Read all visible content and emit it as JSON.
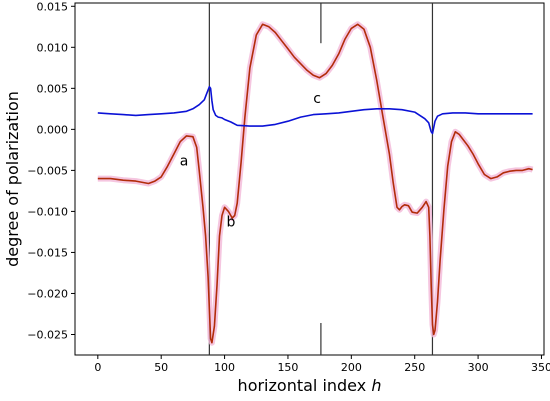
{
  "chart_data": {
    "type": "line",
    "xlabel": "horizontal index",
    "xlabel_italic": "h",
    "ylabel": "degree of polarization",
    "xlim": [
      -18,
      352
    ],
    "ylim": [
      -0.0275,
      0.0154
    ],
    "xticks": [
      0,
      50,
      100,
      150,
      200,
      250,
      300,
      350
    ],
    "yticks": [
      {
        "v": 0.015,
        "label": "0.015"
      },
      {
        "v": 0.01,
        "label": "0.010"
      },
      {
        "v": 0.005,
        "label": "0.005"
      },
      {
        "v": 0.0,
        "label": "0.000"
      },
      {
        "v": -0.005,
        "label": "−0.005"
      },
      {
        "v": -0.01,
        "label": "−0.010"
      },
      {
        "v": -0.015,
        "label": "−0.015"
      },
      {
        "v": -0.02,
        "label": "−0.020"
      },
      {
        "v": -0.025,
        "label": "−0.025"
      }
    ],
    "vlines": [
      {
        "x": 88,
        "full": true
      },
      {
        "x": 176,
        "full": false,
        "segments": [
          [
            0.0105,
            0.0154
          ],
          [
            -0.0275,
            -0.0236
          ]
        ]
      },
      {
        "x": 264,
        "full": true
      }
    ],
    "annotations": [
      {
        "text": "a",
        "x": 68,
        "y": -0.0038
      },
      {
        "text": "b",
        "x": 105,
        "y": -0.0112
      },
      {
        "text": "c",
        "x": 173,
        "y": 0.0038
      }
    ],
    "series": [
      {
        "color": "#b22c0a",
        "halo": "#f3b8d8",
        "x": [
          0,
          10,
          20,
          30,
          40,
          45,
          50,
          55,
          60,
          65,
          70,
          75,
          78,
          80,
          83,
          85,
          87,
          88,
          89,
          90,
          92,
          94,
          96,
          98,
          100,
          103,
          106,
          108,
          110,
          113,
          116,
          120,
          125,
          130,
          135,
          140,
          145,
          150,
          155,
          160,
          165,
          170,
          175,
          180,
          185,
          190,
          195,
          200,
          205,
          210,
          215,
          220,
          225,
          230,
          233,
          236,
          238,
          240,
          242,
          245,
          248,
          252,
          256,
          259,
          261,
          262,
          263,
          264,
          265,
          266,
          268,
          270,
          273,
          276,
          279,
          282,
          285,
          288,
          292,
          296,
          300,
          305,
          310,
          315,
          320,
          325,
          330,
          335,
          340,
          343
        ],
        "y": [
          -0.006,
          -0.006,
          -0.0062,
          -0.0063,
          -0.0066,
          -0.0063,
          -0.0058,
          -0.0045,
          -0.003,
          -0.0015,
          -0.0008,
          -0.0009,
          -0.0022,
          -0.005,
          -0.0095,
          -0.013,
          -0.018,
          -0.022,
          -0.0255,
          -0.026,
          -0.024,
          -0.019,
          -0.013,
          -0.0105,
          -0.0095,
          -0.01,
          -0.0108,
          -0.0105,
          -0.009,
          -0.004,
          0.0015,
          0.0075,
          0.0115,
          0.0128,
          0.0125,
          0.0118,
          0.0108,
          0.0098,
          0.0088,
          0.008,
          0.0072,
          0.0066,
          0.0063,
          0.0068,
          0.0078,
          0.0092,
          0.011,
          0.0123,
          0.0128,
          0.0122,
          0.01,
          0.006,
          0.0015,
          -0.003,
          -0.0065,
          -0.0095,
          -0.0098,
          -0.0094,
          -0.0092,
          -0.0093,
          -0.0101,
          -0.0102,
          -0.0095,
          -0.0088,
          -0.0095,
          -0.013,
          -0.019,
          -0.0238,
          -0.025,
          -0.0245,
          -0.021,
          -0.016,
          -0.0098,
          -0.0045,
          -0.0015,
          -0.0003,
          -0.0006,
          -0.0012,
          -0.002,
          -0.003,
          -0.0042,
          -0.0055,
          -0.006,
          -0.0058,
          -0.0053,
          -0.0051,
          -0.005,
          -0.005,
          -0.0048,
          -0.0049
        ]
      },
      {
        "color": "#0b12d6",
        "halo": "none",
        "x": [
          0,
          10,
          20,
          30,
          40,
          50,
          60,
          70,
          75,
          80,
          84,
          86,
          88,
          89,
          90,
          91,
          93,
          95,
          98,
          100,
          105,
          110,
          120,
          130,
          140,
          150,
          160,
          170,
          180,
          190,
          200,
          210,
          220,
          230,
          240,
          250,
          255,
          258,
          261,
          263,
          264,
          265,
          266,
          268,
          272,
          280,
          290,
          300,
          310,
          320,
          330,
          340,
          343
        ],
        "y": [
          0.002,
          0.0019,
          0.0018,
          0.0017,
          0.0018,
          0.0019,
          0.002,
          0.0022,
          0.0025,
          0.003,
          0.0036,
          0.0044,
          0.0052,
          0.005,
          0.0035,
          0.0024,
          0.0017,
          0.0015,
          0.0014,
          0.0012,
          0.0009,
          0.0005,
          0.0004,
          0.0004,
          0.0006,
          0.001,
          0.0015,
          0.0018,
          0.0019,
          0.002,
          0.0022,
          0.0024,
          0.0025,
          0.0025,
          0.0024,
          0.0021,
          0.0016,
          0.0013,
          0.0008,
          -0.0003,
          -0.0005,
          0.0002,
          0.001,
          0.0016,
          0.0019,
          0.002,
          0.002,
          0.0019,
          0.0019,
          0.0019,
          0.0019,
          0.0019,
          0.0019
        ]
      }
    ]
  }
}
